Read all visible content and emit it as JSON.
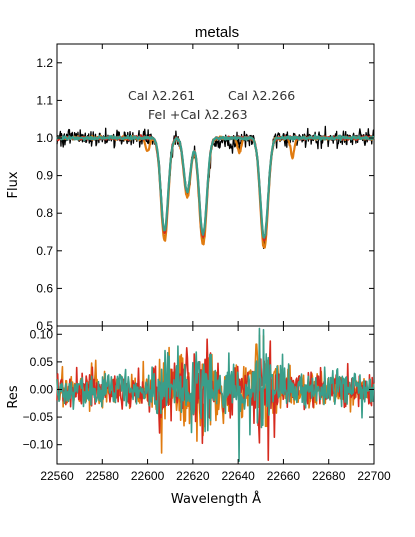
{
  "chart_data": [
    {
      "type": "line",
      "title": "metals",
      "xlabel": "",
      "ylabel": "Flux",
      "xlim": [
        22560,
        22700
      ],
      "ylim": [
        0.5,
        1.25
      ],
      "yticks": [
        "0.5",
        "0.6",
        "0.7",
        "0.8",
        "0.9",
        "1.0",
        "1.1",
        "1.2"
      ],
      "ytick_values": [
        0.5,
        0.6,
        0.7,
        0.8,
        0.9,
        1.0,
        1.1,
        1.2
      ],
      "annotations": [
        "CaI λ2.261",
        "CaI λ2.266",
        "FeI +CaI λ2.263"
      ],
      "lines": [
        {
          "center": 22607.5,
          "depth": 0.26,
          "width": 1.6
        },
        {
          "center": 22617.5,
          "depth": 0.15,
          "width": 1.5
        },
        {
          "center": 22624.5,
          "depth": 0.27,
          "width": 1.7
        },
        {
          "center": 22651.5,
          "depth": 0.28,
          "width": 1.7
        }
      ],
      "series": [
        {
          "color": "#000000",
          "kind": "observed",
          "noise": 0.011
        },
        {
          "color": "#e07b10",
          "kind": "model",
          "depth_scale": 1.05
        },
        {
          "color": "#d62a1e",
          "kind": "model",
          "depth_scale": 0.97
        },
        {
          "color": "#3a9e8a",
          "kind": "model",
          "depth_scale": 0.95
        }
      ]
    },
    {
      "type": "line",
      "xlabel": "Wavelength Å",
      "ylabel": "Res",
      "xlim": [
        22560,
        22700
      ],
      "ylim": [
        -0.135,
        0.115
      ],
      "xticks": [
        "22560",
        "22580",
        "22600",
        "22620",
        "22640",
        "22660",
        "22680",
        "22700"
      ],
      "xtick_values": [
        22560,
        22580,
        22600,
        22620,
        22640,
        22660,
        22680,
        22700
      ],
      "yticks": [
        "−0.10",
        "−0.05",
        "0.00",
        "0.05",
        "0.10"
      ],
      "ytick_values": [
        -0.1,
        -0.05,
        0.0,
        0.05,
        0.1
      ],
      "series": [
        {
          "color": "#e07b10",
          "noise": 0.017
        },
        {
          "color": "#d62a1e",
          "noise": 0.016
        },
        {
          "color": "#3a9e8a",
          "noise": 0.016
        }
      ]
    }
  ]
}
